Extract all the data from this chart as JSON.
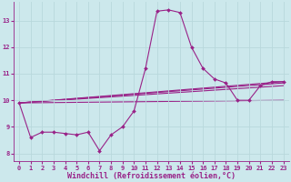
{
  "xlabel": "Windchill (Refroidissement éolien,°C)",
  "background_color": "#cce8ec",
  "line_color": "#992288",
  "marker": "D",
  "markersize": 2.0,
  "linewidth": 0.8,
  "xlim": [
    -0.5,
    23.5
  ],
  "ylim": [
    7.7,
    13.7
  ],
  "yticks": [
    8,
    9,
    10,
    11,
    12,
    13
  ],
  "xticks": [
    0,
    1,
    2,
    3,
    4,
    5,
    6,
    7,
    8,
    9,
    10,
    11,
    12,
    13,
    14,
    15,
    16,
    17,
    18,
    19,
    20,
    21,
    22,
    23
  ],
  "series": [
    [
      0,
      9.9
    ],
    [
      1,
      8.6
    ],
    [
      2,
      8.8
    ],
    [
      3,
      8.8
    ],
    [
      4,
      8.75
    ],
    [
      5,
      8.7
    ],
    [
      6,
      8.8
    ],
    [
      7,
      8.1
    ],
    [
      8,
      8.7
    ],
    [
      9,
      9.0
    ],
    [
      10,
      9.6
    ],
    [
      11,
      11.2
    ],
    [
      12,
      13.35
    ],
    [
      13,
      13.4
    ],
    [
      14,
      13.3
    ],
    [
      15,
      12.0
    ],
    [
      16,
      11.2
    ],
    [
      17,
      10.8
    ],
    [
      18,
      10.65
    ],
    [
      19,
      10.0
    ],
    [
      20,
      10.0
    ],
    [
      21,
      10.55
    ],
    [
      22,
      10.7
    ],
    [
      23,
      10.7
    ]
  ],
  "straight_lines": [
    {
      "x0": 0,
      "y0": 9.9,
      "x1": 23,
      "y1": 10.7
    },
    {
      "x0": 0,
      "y0": 9.9,
      "x1": 23,
      "y1": 10.65
    },
    {
      "x0": 0,
      "y0": 9.9,
      "x1": 23,
      "y1": 10.55
    },
    {
      "x0": 0,
      "y0": 9.9,
      "x1": 23,
      "y1": 10.0
    }
  ],
  "grid_color": "#b8d8dc",
  "tick_fontsize": 5.0,
  "xlabel_fontsize": 6.0,
  "fig_width": 3.2,
  "fig_height": 2.0,
  "dpi": 100
}
